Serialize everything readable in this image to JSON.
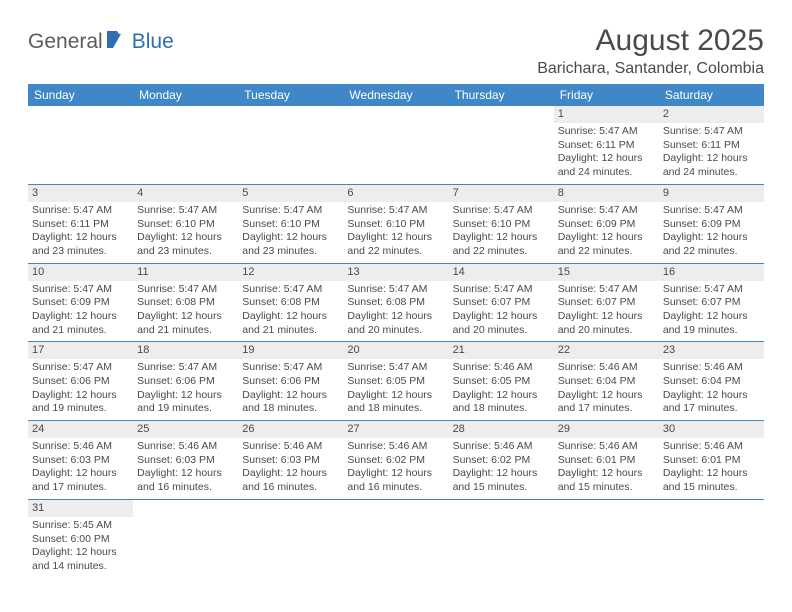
{
  "brand": {
    "part1": "General",
    "part2": "Blue"
  },
  "title": "August 2025",
  "location": "Barichara, Santander, Colombia",
  "colors": {
    "header_bg": "#3f87c6",
    "header_text": "#ffffff",
    "daynum_bg": "#ededed",
    "text": "#4a4a4a",
    "border": "#3f87c6",
    "brand_gray": "#5c5c5c",
    "brand_blue": "#2f6fb0"
  },
  "weekdays": [
    "Sunday",
    "Monday",
    "Tuesday",
    "Wednesday",
    "Thursday",
    "Friday",
    "Saturday"
  ],
  "weeks": [
    [
      {
        "n": "",
        "sr": "",
        "ss": "",
        "dl": ""
      },
      {
        "n": "",
        "sr": "",
        "ss": "",
        "dl": ""
      },
      {
        "n": "",
        "sr": "",
        "ss": "",
        "dl": ""
      },
      {
        "n": "",
        "sr": "",
        "ss": "",
        "dl": ""
      },
      {
        "n": "",
        "sr": "",
        "ss": "",
        "dl": ""
      },
      {
        "n": "1",
        "sr": "Sunrise: 5:47 AM",
        "ss": "Sunset: 6:11 PM",
        "dl": "Daylight: 12 hours and 24 minutes."
      },
      {
        "n": "2",
        "sr": "Sunrise: 5:47 AM",
        "ss": "Sunset: 6:11 PM",
        "dl": "Daylight: 12 hours and 24 minutes."
      }
    ],
    [
      {
        "n": "3",
        "sr": "Sunrise: 5:47 AM",
        "ss": "Sunset: 6:11 PM",
        "dl": "Daylight: 12 hours and 23 minutes."
      },
      {
        "n": "4",
        "sr": "Sunrise: 5:47 AM",
        "ss": "Sunset: 6:10 PM",
        "dl": "Daylight: 12 hours and 23 minutes."
      },
      {
        "n": "5",
        "sr": "Sunrise: 5:47 AM",
        "ss": "Sunset: 6:10 PM",
        "dl": "Daylight: 12 hours and 23 minutes."
      },
      {
        "n": "6",
        "sr": "Sunrise: 5:47 AM",
        "ss": "Sunset: 6:10 PM",
        "dl": "Daylight: 12 hours and 22 minutes."
      },
      {
        "n": "7",
        "sr": "Sunrise: 5:47 AM",
        "ss": "Sunset: 6:10 PM",
        "dl": "Daylight: 12 hours and 22 minutes."
      },
      {
        "n": "8",
        "sr": "Sunrise: 5:47 AM",
        "ss": "Sunset: 6:09 PM",
        "dl": "Daylight: 12 hours and 22 minutes."
      },
      {
        "n": "9",
        "sr": "Sunrise: 5:47 AM",
        "ss": "Sunset: 6:09 PM",
        "dl": "Daylight: 12 hours and 22 minutes."
      }
    ],
    [
      {
        "n": "10",
        "sr": "Sunrise: 5:47 AM",
        "ss": "Sunset: 6:09 PM",
        "dl": "Daylight: 12 hours and 21 minutes."
      },
      {
        "n": "11",
        "sr": "Sunrise: 5:47 AM",
        "ss": "Sunset: 6:08 PM",
        "dl": "Daylight: 12 hours and 21 minutes."
      },
      {
        "n": "12",
        "sr": "Sunrise: 5:47 AM",
        "ss": "Sunset: 6:08 PM",
        "dl": "Daylight: 12 hours and 21 minutes."
      },
      {
        "n": "13",
        "sr": "Sunrise: 5:47 AM",
        "ss": "Sunset: 6:08 PM",
        "dl": "Daylight: 12 hours and 20 minutes."
      },
      {
        "n": "14",
        "sr": "Sunrise: 5:47 AM",
        "ss": "Sunset: 6:07 PM",
        "dl": "Daylight: 12 hours and 20 minutes."
      },
      {
        "n": "15",
        "sr": "Sunrise: 5:47 AM",
        "ss": "Sunset: 6:07 PM",
        "dl": "Daylight: 12 hours and 20 minutes."
      },
      {
        "n": "16",
        "sr": "Sunrise: 5:47 AM",
        "ss": "Sunset: 6:07 PM",
        "dl": "Daylight: 12 hours and 19 minutes."
      }
    ],
    [
      {
        "n": "17",
        "sr": "Sunrise: 5:47 AM",
        "ss": "Sunset: 6:06 PM",
        "dl": "Daylight: 12 hours and 19 minutes."
      },
      {
        "n": "18",
        "sr": "Sunrise: 5:47 AM",
        "ss": "Sunset: 6:06 PM",
        "dl": "Daylight: 12 hours and 19 minutes."
      },
      {
        "n": "19",
        "sr": "Sunrise: 5:47 AM",
        "ss": "Sunset: 6:06 PM",
        "dl": "Daylight: 12 hours and 18 minutes."
      },
      {
        "n": "20",
        "sr": "Sunrise: 5:47 AM",
        "ss": "Sunset: 6:05 PM",
        "dl": "Daylight: 12 hours and 18 minutes."
      },
      {
        "n": "21",
        "sr": "Sunrise: 5:46 AM",
        "ss": "Sunset: 6:05 PM",
        "dl": "Daylight: 12 hours and 18 minutes."
      },
      {
        "n": "22",
        "sr": "Sunrise: 5:46 AM",
        "ss": "Sunset: 6:04 PM",
        "dl": "Daylight: 12 hours and 17 minutes."
      },
      {
        "n": "23",
        "sr": "Sunrise: 5:46 AM",
        "ss": "Sunset: 6:04 PM",
        "dl": "Daylight: 12 hours and 17 minutes."
      }
    ],
    [
      {
        "n": "24",
        "sr": "Sunrise: 5:46 AM",
        "ss": "Sunset: 6:03 PM",
        "dl": "Daylight: 12 hours and 17 minutes."
      },
      {
        "n": "25",
        "sr": "Sunrise: 5:46 AM",
        "ss": "Sunset: 6:03 PM",
        "dl": "Daylight: 12 hours and 16 minutes."
      },
      {
        "n": "26",
        "sr": "Sunrise: 5:46 AM",
        "ss": "Sunset: 6:03 PM",
        "dl": "Daylight: 12 hours and 16 minutes."
      },
      {
        "n": "27",
        "sr": "Sunrise: 5:46 AM",
        "ss": "Sunset: 6:02 PM",
        "dl": "Daylight: 12 hours and 16 minutes."
      },
      {
        "n": "28",
        "sr": "Sunrise: 5:46 AM",
        "ss": "Sunset: 6:02 PM",
        "dl": "Daylight: 12 hours and 15 minutes."
      },
      {
        "n": "29",
        "sr": "Sunrise: 5:46 AM",
        "ss": "Sunset: 6:01 PM",
        "dl": "Daylight: 12 hours and 15 minutes."
      },
      {
        "n": "30",
        "sr": "Sunrise: 5:46 AM",
        "ss": "Sunset: 6:01 PM",
        "dl": "Daylight: 12 hours and 15 minutes."
      }
    ],
    [
      {
        "n": "31",
        "sr": "Sunrise: 5:45 AM",
        "ss": "Sunset: 6:00 PM",
        "dl": "Daylight: 12 hours and 14 minutes."
      },
      {
        "n": "",
        "sr": "",
        "ss": "",
        "dl": ""
      },
      {
        "n": "",
        "sr": "",
        "ss": "",
        "dl": ""
      },
      {
        "n": "",
        "sr": "",
        "ss": "",
        "dl": ""
      },
      {
        "n": "",
        "sr": "",
        "ss": "",
        "dl": ""
      },
      {
        "n": "",
        "sr": "",
        "ss": "",
        "dl": ""
      },
      {
        "n": "",
        "sr": "",
        "ss": "",
        "dl": ""
      }
    ]
  ]
}
